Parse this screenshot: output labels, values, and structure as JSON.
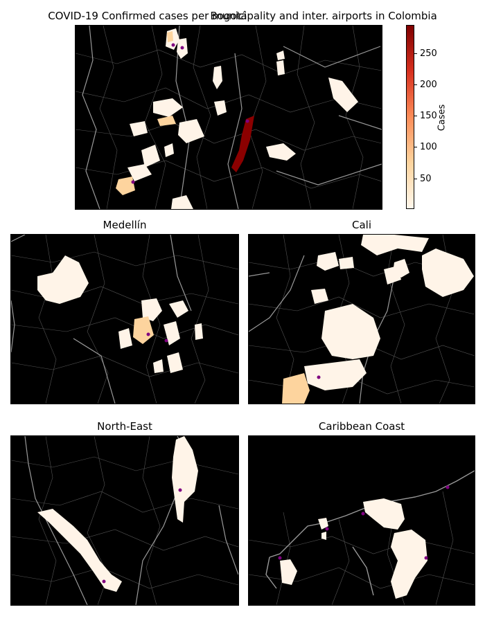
{
  "figure": {
    "suptitle": "COVID-19 Confirmed cases per municipality and inter. airports in Colombia"
  },
  "panels": [
    {
      "id": "bogota",
      "title": "Bogotá"
    },
    {
      "id": "medellin",
      "title": "Medellín"
    },
    {
      "id": "cali",
      "title": "Cali"
    },
    {
      "id": "northeast",
      "title": "North-East"
    },
    {
      "id": "caribbean",
      "title": "Caribbean Coast"
    }
  ],
  "colorbar": {
    "label": "Cases",
    "ticks": [
      "50",
      "100",
      "150",
      "200",
      "250"
    ],
    "tick_values": [
      50,
      100,
      150,
      200,
      250
    ],
    "range": [
      1,
      295
    ],
    "colormap": "OrRd",
    "stops": [
      "#fff7ec",
      "#fdd49e",
      "#fc8d59",
      "#d7301f",
      "#7f0000"
    ]
  },
  "style": {
    "background": "#000000",
    "boundary_color": "#808080",
    "airport_color": "#800080",
    "low_cases_color": "#fff4e8",
    "mid_cases_color": "#fdd49e",
    "high_cases_color": "#8b0000"
  }
}
